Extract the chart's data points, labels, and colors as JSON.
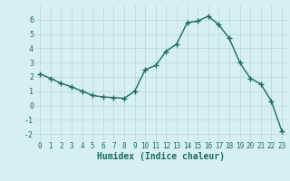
{
  "x": [
    0,
    1,
    2,
    3,
    4,
    5,
    6,
    7,
    8,
    9,
    10,
    11,
    12,
    13,
    14,
    15,
    16,
    17,
    18,
    19,
    20,
    21,
    22,
    23
  ],
  "y": [
    2.2,
    1.9,
    1.55,
    1.3,
    1.0,
    0.7,
    0.6,
    0.55,
    0.5,
    1.0,
    2.5,
    2.8,
    3.8,
    4.3,
    5.8,
    5.9,
    6.25,
    5.65,
    4.7,
    3.0,
    1.9,
    1.5,
    0.3,
    -1.8
  ],
  "xlabel": "Humidex (Indice chaleur)",
  "xlim": [
    -0.5,
    23.5
  ],
  "ylim": [
    -2.5,
    7.0
  ],
  "yticks": [
    -2,
    -1,
    0,
    1,
    2,
    3,
    4,
    5,
    6
  ],
  "xticks": [
    0,
    1,
    2,
    3,
    4,
    5,
    6,
    7,
    8,
    9,
    10,
    11,
    12,
    13,
    14,
    15,
    16,
    17,
    18,
    19,
    20,
    21,
    22,
    23
  ],
  "line_color": "#1a6b5a",
  "marker": "+",
  "marker_size": 4,
  "bg_color": "#d6f0f0",
  "grid_color": "#b8d8d8",
  "line_width": 1.0,
  "tick_fontsize": 5.5,
  "xlabel_fontsize": 7.0
}
